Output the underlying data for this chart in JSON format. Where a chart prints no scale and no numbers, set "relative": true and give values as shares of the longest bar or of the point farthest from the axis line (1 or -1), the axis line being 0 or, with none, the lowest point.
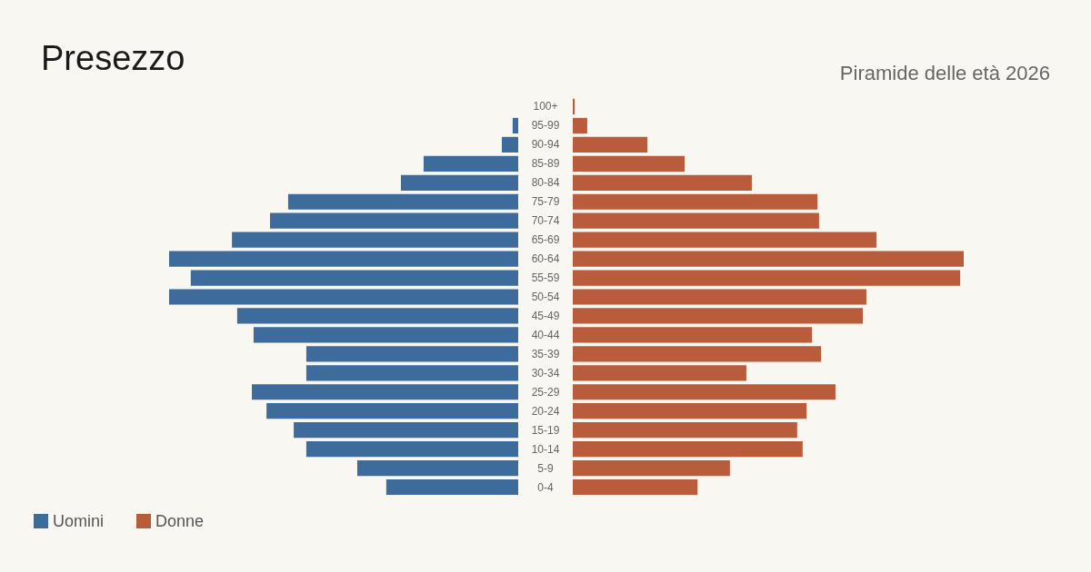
{
  "chart_data": [
    {
      "type": "bar",
      "orientation": "horizontal",
      "relative": true,
      "title": "Presezzo",
      "legend": "bottom left",
      "categories": [
        "100+",
        "95-99",
        "90-94",
        "85-89",
        "80-84",
        "75-79",
        "70-74",
        "65-69",
        "60-64",
        "55-59",
        "50-54",
        "45-49",
        "40-44",
        "35-39",
        "30-34",
        "25-29",
        "20-24",
        "15-19",
        "10-14",
        "5-9",
        "0-4"
      ],
      "series": [
        {
          "name": "Uomini",
          "color": "#3d6b9c",
          "values": [
            0,
            -0.016,
            -0.047,
            -0.271,
            -0.336,
            -0.659,
            -0.711,
            -0.82,
            -1,
            -0.938,
            -1,
            -0.805,
            -0.758,
            -0.607,
            -0.607,
            -0.763,
            -0.721,
            -0.643,
            -0.607,
            -0.461,
            -0.378
          ]
        }
      ]
    },
    {
      "type": "bar",
      "orientation": "horizontal",
      "relative": true,
      "subtitle": "Piramide delle età 2026",
      "legend": "bottom left",
      "categories": [
        null,
        null,
        null,
        null,
        null,
        null,
        null,
        null,
        null,
        null,
        null,
        null,
        null,
        null,
        null,
        null,
        null,
        null,
        null,
        null,
        null
      ],
      "series": [
        {
          "name": "Donne",
          "color": "#b95c3b",
          "values": [
            0.005,
            0.037,
            0.191,
            0.286,
            0.458,
            0.626,
            0.63,
            0.777,
            1,
            0.991,
            0.751,
            0.742,
            0.612,
            0.635,
            0.444,
            0.672,
            0.598,
            0.574,
            0.588,
            0.402,
            0.319
          ]
        }
      ]
    }
  ]
}
